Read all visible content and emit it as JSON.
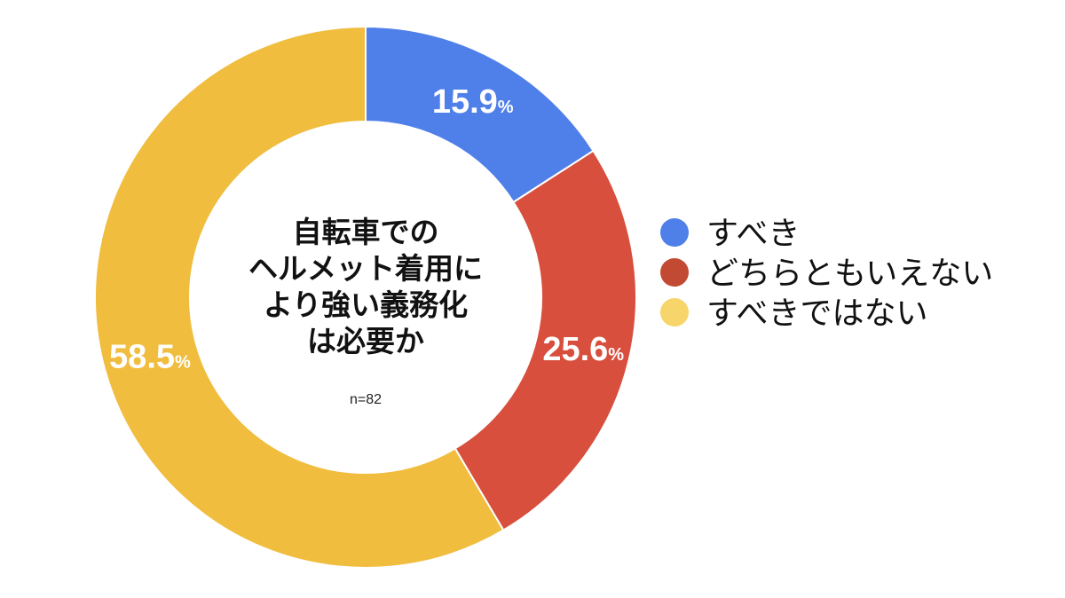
{
  "chart_data": {
    "type": "pie",
    "donut": true,
    "title_lines": [
      "自転車での",
      "ヘルメット着用に",
      "より強い義務化",
      "は必要か"
    ],
    "sample_size": "n=82",
    "unit": "%",
    "slices": [
      {
        "label": "すべき",
        "value": 15.9,
        "display": "15.9",
        "color": "#4f7fe8"
      },
      {
        "label": "どちらともいえない",
        "value": 25.6,
        "display": "25.6",
        "color": "#d84f3d"
      },
      {
        "label": "すべきではない",
        "value": 58.5,
        "display": "58.5",
        "color": "#f0bd3f"
      }
    ],
    "legend": {
      "placement": "right",
      "items": [
        {
          "label": "すべき",
          "color": "#4f7fe8"
        },
        {
          "label": "どちらともいえない",
          "color": "#c24a32"
        },
        {
          "label": "すべきではない",
          "color": "#f7d56a"
        }
      ]
    }
  }
}
